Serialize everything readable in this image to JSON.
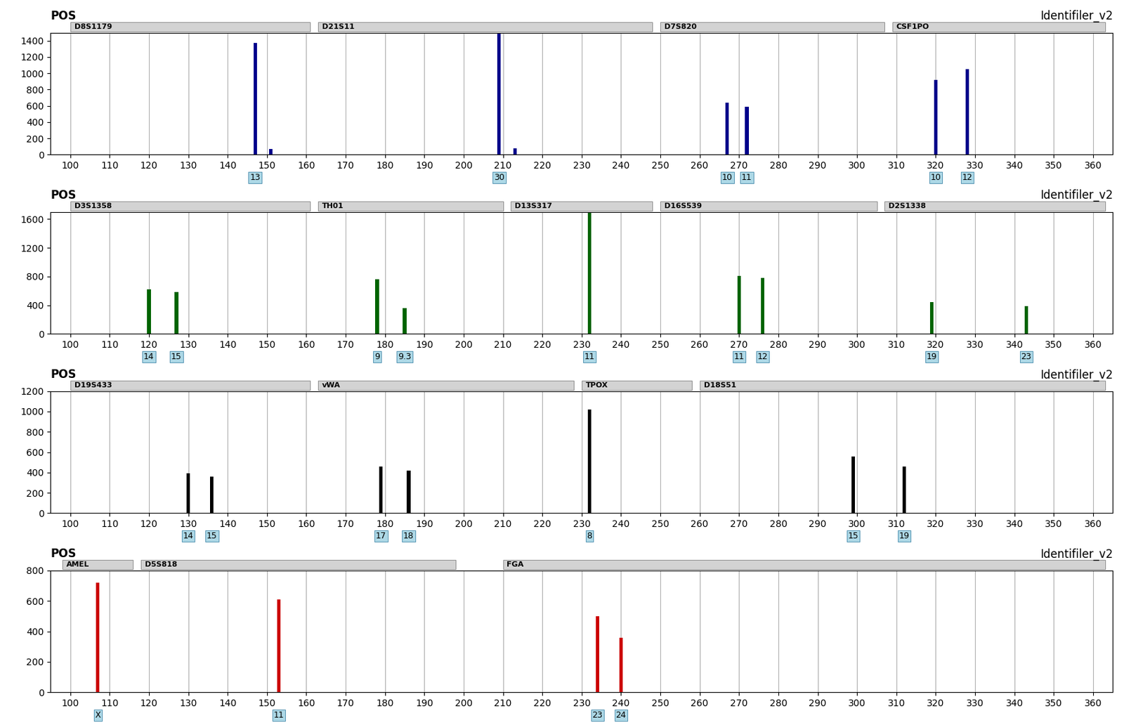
{
  "chart_data": [
    {
      "type": "bar",
      "title": "POS",
      "subtitle": "Identifiler_v2",
      "color": "#00008B",
      "x": [
        147,
        151,
        209,
        213,
        267,
        272,
        320,
        328
      ],
      "values": [
        1370,
        65,
        1490,
        75,
        640,
        590,
        920,
        1050
      ],
      "regions": [
        {
          "label": "D8S1179",
          "x_start": 100,
          "x_end": 161
        },
        {
          "label": "D21S11",
          "x_start": 163,
          "x_end": 248
        },
        {
          "label": "D7S820",
          "x_start": 250,
          "x_end": 307
        },
        {
          "label": "CSF1PO",
          "x_start": 309,
          "x_end": 363
        }
      ],
      "annotations": [
        {
          "x": 147,
          "text": "13"
        },
        {
          "x": 209,
          "text": "30"
        },
        {
          "x": 267,
          "text": "10"
        },
        {
          "x": 272,
          "text": "11"
        },
        {
          "x": 320,
          "text": "10"
        },
        {
          "x": 328,
          "text": "12"
        }
      ],
      "xlim": [
        95,
        365
      ],
      "xticks": [
        100,
        110,
        120,
        130,
        140,
        150,
        160,
        170,
        180,
        190,
        200,
        210,
        220,
        230,
        240,
        250,
        260,
        270,
        280,
        290,
        300,
        310,
        320,
        330,
        340,
        350,
        360
      ],
      "ylim": [
        0,
        1500
      ],
      "yticks": [
        0,
        200,
        400,
        600,
        800,
        1000,
        1200,
        1400
      ],
      "grid": "x"
    },
    {
      "type": "bar",
      "title": "POS",
      "subtitle": "Identifiler_v2",
      "color": "#006400",
      "x": [
        120,
        127,
        178,
        185,
        232,
        270,
        276,
        319,
        343
      ],
      "values": [
        620,
        580,
        760,
        360,
        1700,
        810,
        780,
        440,
        390
      ],
      "regions": [
        {
          "label": "D3S1358",
          "x_start": 100,
          "x_end": 161
        },
        {
          "label": "TH01",
          "x_start": 163,
          "x_end": 210
        },
        {
          "label": "D13S317",
          "x_start": 212,
          "x_end": 248
        },
        {
          "label": "D16S539",
          "x_start": 250,
          "x_end": 305
        },
        {
          "label": "D2S1338",
          "x_start": 307,
          "x_end": 363
        }
      ],
      "annotations": [
        {
          "x": 120,
          "text": "14"
        },
        {
          "x": 127,
          "text": "15"
        },
        {
          "x": 178,
          "text": "9"
        },
        {
          "x": 185,
          "text": "9.3"
        },
        {
          "x": 232,
          "text": "11"
        },
        {
          "x": 270,
          "text": "11"
        },
        {
          "x": 276,
          "text": "12"
        },
        {
          "x": 319,
          "text": "19"
        },
        {
          "x": 343,
          "text": "23"
        }
      ],
      "xlim": [
        95,
        365
      ],
      "xticks": [
        100,
        110,
        120,
        130,
        140,
        150,
        160,
        170,
        180,
        190,
        200,
        210,
        220,
        230,
        240,
        250,
        260,
        270,
        280,
        290,
        300,
        310,
        320,
        330,
        340,
        350,
        360
      ],
      "ylim": [
        0,
        1700
      ],
      "yticks": [
        0,
        400,
        800,
        1200,
        1600
      ],
      "grid": "x"
    },
    {
      "type": "bar",
      "title": "POS",
      "subtitle": "Identifiler_v2",
      "color": "#000000",
      "x": [
        130,
        136,
        179,
        186,
        232,
        299,
        312
      ],
      "values": [
        390,
        360,
        460,
        420,
        1020,
        560,
        460
      ],
      "regions": [
        {
          "label": "D19S433",
          "x_start": 100,
          "x_end": 161
        },
        {
          "label": "vWA",
          "x_start": 163,
          "x_end": 228
        },
        {
          "label": "TPOX",
          "x_start": 230,
          "x_end": 258
        },
        {
          "label": "D18S51",
          "x_start": 260,
          "x_end": 363
        }
      ],
      "annotations": [
        {
          "x": 130,
          "text": "14"
        },
        {
          "x": 136,
          "text": "15"
        },
        {
          "x": 179,
          "text": "17"
        },
        {
          "x": 186,
          "text": "18"
        },
        {
          "x": 232,
          "text": "8"
        },
        {
          "x": 299,
          "text": "15"
        },
        {
          "x": 312,
          "text": "19"
        }
      ],
      "xlim": [
        95,
        365
      ],
      "xticks": [
        100,
        110,
        120,
        130,
        140,
        150,
        160,
        170,
        180,
        190,
        200,
        210,
        220,
        230,
        240,
        250,
        260,
        270,
        280,
        290,
        300,
        310,
        320,
        330,
        340,
        350,
        360
      ],
      "ylim": [
        0,
        1200
      ],
      "yticks": [
        0,
        200,
        400,
        600,
        800,
        1000,
        1200
      ],
      "grid": "x"
    },
    {
      "type": "bar",
      "title": "POS",
      "subtitle": "Identifiler_v2",
      "color": "#CC0000",
      "x": [
        107,
        153,
        234,
        240
      ],
      "values": [
        720,
        610,
        500,
        360
      ],
      "regions": [
        {
          "label": "AMEL",
          "x_start": 98,
          "x_end": 116
        },
        {
          "label": "D5S818",
          "x_start": 118,
          "x_end": 198
        },
        {
          "label": "FGA",
          "x_start": 210,
          "x_end": 363
        }
      ],
      "annotations": [
        {
          "x": 107,
          "text": "X"
        },
        {
          "x": 153,
          "text": "11"
        },
        {
          "x": 234,
          "text": "23"
        },
        {
          "x": 240,
          "text": "24"
        }
      ],
      "xlim": [
        95,
        365
      ],
      "xticks": [
        100,
        110,
        120,
        130,
        140,
        150,
        160,
        170,
        180,
        190,
        200,
        210,
        220,
        230,
        240,
        250,
        260,
        270,
        280,
        290,
        300,
        310,
        320,
        330,
        340,
        350,
        360
      ],
      "ylim": [
        0,
        800
      ],
      "yticks": [
        0,
        200,
        400,
        600,
        800
      ],
      "grid": "x"
    }
  ]
}
